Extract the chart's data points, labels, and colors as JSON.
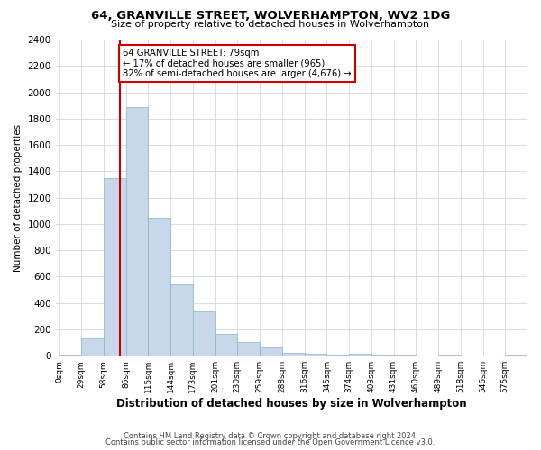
{
  "title": "64, GRANVILLE STREET, WOLVERHAMPTON, WV2 1DG",
  "subtitle": "Size of property relative to detached houses in Wolverhampton",
  "xlabel": "Distribution of detached houses by size in Wolverhampton",
  "ylabel": "Number of detached properties",
  "bin_labels": [
    "0sqm",
    "29sqm",
    "58sqm",
    "86sqm",
    "115sqm",
    "144sqm",
    "173sqm",
    "201sqm",
    "230sqm",
    "259sqm",
    "288sqm",
    "316sqm",
    "345sqm",
    "374sqm",
    "403sqm",
    "431sqm",
    "460sqm",
    "489sqm",
    "518sqm",
    "546sqm",
    "575sqm"
  ],
  "bar_heights": [
    5,
    130,
    1350,
    1890,
    1050,
    540,
    335,
    165,
    105,
    60,
    25,
    15,
    10,
    15,
    5,
    5,
    0,
    10,
    0,
    0,
    10
  ],
  "bar_color": "#c8d8ea",
  "bar_edge_color": "#8ab4cc",
  "property_line_x": 2.72,
  "ylim": [
    0,
    2400
  ],
  "yticks": [
    0,
    200,
    400,
    600,
    800,
    1000,
    1200,
    1400,
    1600,
    1800,
    2000,
    2200,
    2400
  ],
  "annotation_title": "64 GRANVILLE STREET: 79sqm",
  "annotation_line1": "← 17% of detached houses are smaller (965)",
  "annotation_line2": "82% of semi-detached houses are larger (4,676) →",
  "annotation_box_color": "#ffffff",
  "annotation_box_edge": "#cc0000",
  "vline_color": "#cc0000",
  "footer1": "Contains HM Land Registry data © Crown copyright and database right 2024.",
  "footer2": "Contains public sector information licensed under the Open Government Licence v3.0.",
  "background_color": "#ffffff",
  "grid_color": "#cdd8e6"
}
